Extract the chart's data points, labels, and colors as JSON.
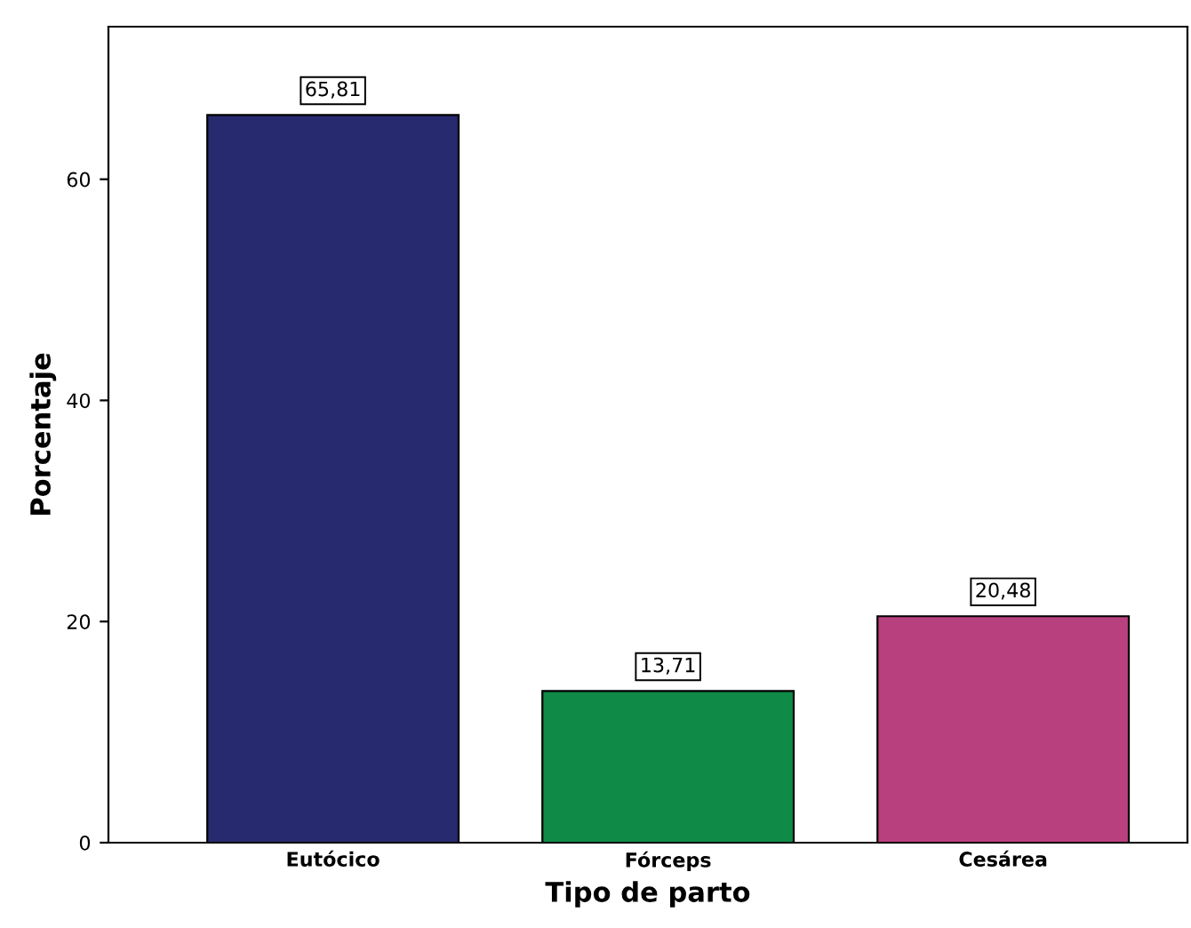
{
  "chart_data": {
    "type": "bar",
    "xlabel": "Tipo de parto",
    "ylabel": "Porcentaje",
    "categories": [
      "Eutócico",
      "Fórceps",
      "Cesárea"
    ],
    "values": [
      65.81,
      13.71,
      20.48
    ],
    "value_labels": [
      "65,81",
      "13,71",
      "20,48"
    ],
    "colors": [
      "#272a6e",
      "#0f8a47",
      "#b9407e"
    ],
    "ylim": [
      0,
      73.8
    ],
    "yticks": [
      0,
      20,
      40,
      60
    ],
    "grid": false
  }
}
